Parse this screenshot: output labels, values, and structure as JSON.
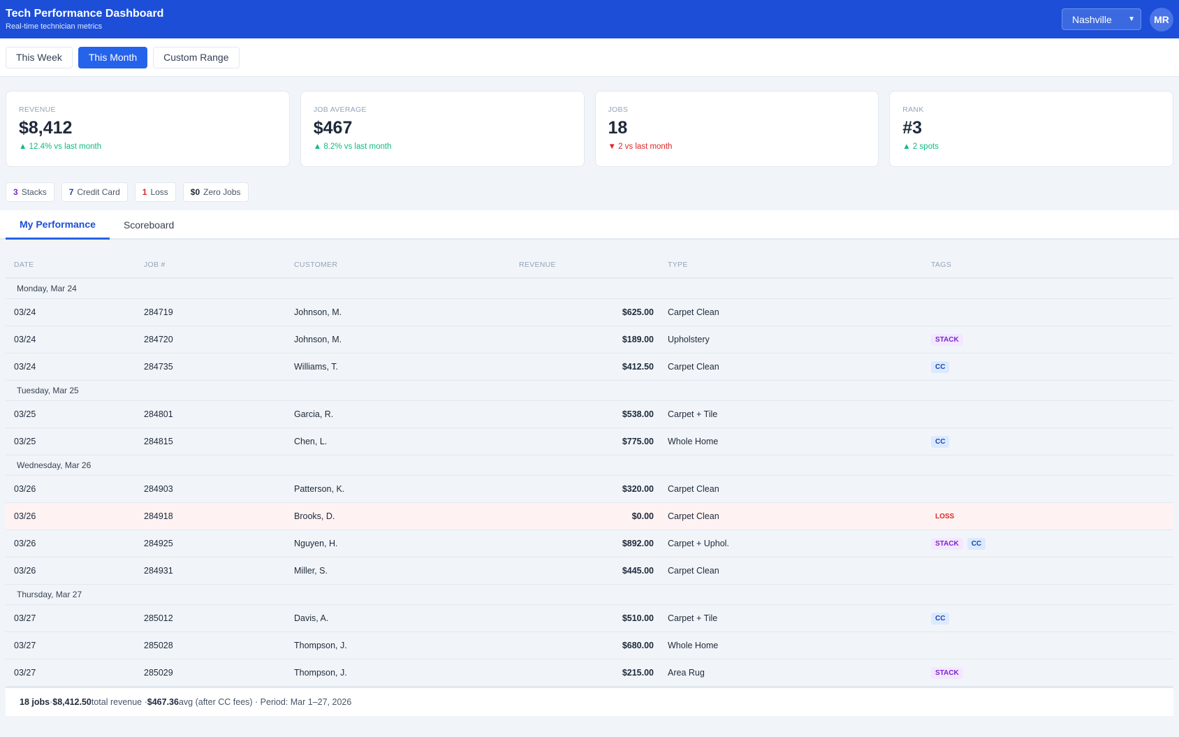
{
  "header": {
    "title": "Tech Performance Dashboard",
    "subtitle": "Real-time technician metrics",
    "location": "Nashville",
    "avatar": "MR",
    "accent": "#1d4ed8"
  },
  "ranges": [
    {
      "label": "This Week",
      "active": false
    },
    {
      "label": "This Month",
      "active": true
    },
    {
      "label": "Custom Range",
      "active": false
    }
  ],
  "cards": [
    {
      "label": "REVENUE",
      "value": "$8,412",
      "delta": "▲ 12.4% vs last month",
      "dir": "up"
    },
    {
      "label": "JOB AVERAGE",
      "value": "$467",
      "delta": "▲ 8.2% vs last month",
      "dir": "up"
    },
    {
      "label": "JOBS",
      "value": "18",
      "delta": "▼ 2 vs last month",
      "dir": "down"
    },
    {
      "label": "RANK",
      "value": "#3",
      "delta": "▲ 2 spots",
      "dir": "up"
    }
  ],
  "chips": [
    {
      "count": "3",
      "label": "Stacks",
      "color": "#7e22ce"
    },
    {
      "count": "7",
      "label": "Credit Card",
      "color": "#1e40af"
    },
    {
      "count": "1",
      "label": "Loss",
      "color": "#dc2626"
    },
    {
      "count": "$0",
      "label": "Zero Jobs",
      "color": "#1e293b"
    }
  ],
  "tabs": [
    {
      "label": "My Performance",
      "active": true
    },
    {
      "label": "Scoreboard",
      "active": false
    }
  ],
  "columns": [
    "DATE",
    "JOB #",
    "CUSTOMER",
    "REVENUE",
    "TYPE",
    "TAGS"
  ],
  "groups": [
    {
      "label": "Monday, Mar 24",
      "rows": [
        [
          "03/24",
          "284719",
          "Johnson, M.",
          "$625.00",
          "Carpet Clean",
          []
        ],
        [
          "03/24",
          "284720",
          "Johnson, M.",
          "$189.00",
          "Upholstery",
          [
            "STACK"
          ]
        ],
        [
          "03/24",
          "284735",
          "Williams, T.",
          "$412.50",
          "Carpet Clean",
          [
            "CC"
          ]
        ]
      ]
    },
    {
      "label": "Tuesday, Mar 25",
      "rows": [
        [
          "03/25",
          "284801",
          "Garcia, R.",
          "$538.00",
          "Carpet + Tile",
          []
        ],
        [
          "03/25",
          "284815",
          "Chen, L.",
          "$775.00",
          "Whole Home",
          [
            "CC"
          ]
        ]
      ]
    },
    {
      "label": "Wednesday, Mar 26",
      "rows": [
        [
          "03/26",
          "284903",
          "Patterson, K.",
          "$320.00",
          "Carpet Clean",
          []
        ],
        [
          "03/26",
          "284918",
          "Brooks, D.",
          "$0.00",
          "Carpet Clean",
          [
            "LOSS"
          ]
        ],
        [
          "03/26",
          "284925",
          "Nguyen, H.",
          "$892.00",
          "Carpet + Uphol.",
          [
            "STACK",
            "CC"
          ]
        ],
        [
          "03/26",
          "284931",
          "Miller, S.",
          "$445.00",
          "Carpet Clean",
          []
        ]
      ]
    },
    {
      "label": "Thursday, Mar 27",
      "rows": [
        [
          "03/27",
          "285012",
          "Davis, A.",
          "$510.00",
          "Carpet + Tile",
          [
            "CC"
          ]
        ],
        [
          "03/27",
          "285028",
          "Thompson, J.",
          "$680.00",
          "Whole Home",
          []
        ],
        [
          "03/27",
          "285029",
          "Thompson, J.",
          "$215.00",
          "Area Rug",
          [
            "STACK"
          ]
        ]
      ]
    }
  ],
  "footer": {
    "jobs": "18 jobs",
    "sep1": " · ",
    "total": "$8,412.50",
    "total_label": " total revenue · ",
    "avg": "$467.36",
    "avg_label": " avg (after CC fees) · Period: Mar 1–27, 2026"
  }
}
